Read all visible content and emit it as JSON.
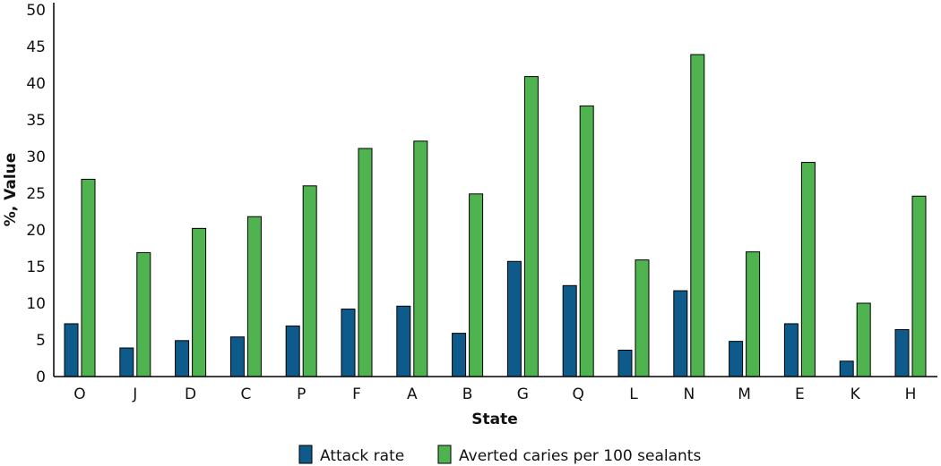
{
  "chart_data": {
    "type": "bar",
    "title": "",
    "xlabel": "State",
    "ylabel": "%, Value",
    "ylim": [
      0,
      50
    ],
    "yticks": [
      "0",
      "5",
      "10",
      "15",
      "20",
      "25",
      "30",
      "35",
      "40",
      "45",
      "50"
    ],
    "categories": [
      "O",
      "J",
      "D",
      "C",
      "P",
      "F",
      "A",
      "B",
      "G",
      "Q",
      "L",
      "N",
      "M",
      "E",
      "K",
      "H"
    ],
    "series": [
      {
        "name": "Attack rate",
        "color": "#0e5a8a",
        "values": [
          7.2,
          3.9,
          4.9,
          5.4,
          6.9,
          9.2,
          9.6,
          5.9,
          15.7,
          12.4,
          3.6,
          11.7,
          4.8,
          7.2,
          2.1,
          6.4
        ]
      },
      {
        "name": "Averted caries per 100 sealants",
        "color": "#4fb350",
        "values": [
          26.9,
          16.9,
          20.2,
          21.8,
          26.0,
          31.1,
          32.1,
          24.9,
          40.9,
          36.9,
          15.9,
          43.9,
          17.0,
          29.2,
          10.0,
          24.6
        ]
      }
    ],
    "grid": false,
    "legend": "bottom"
  }
}
